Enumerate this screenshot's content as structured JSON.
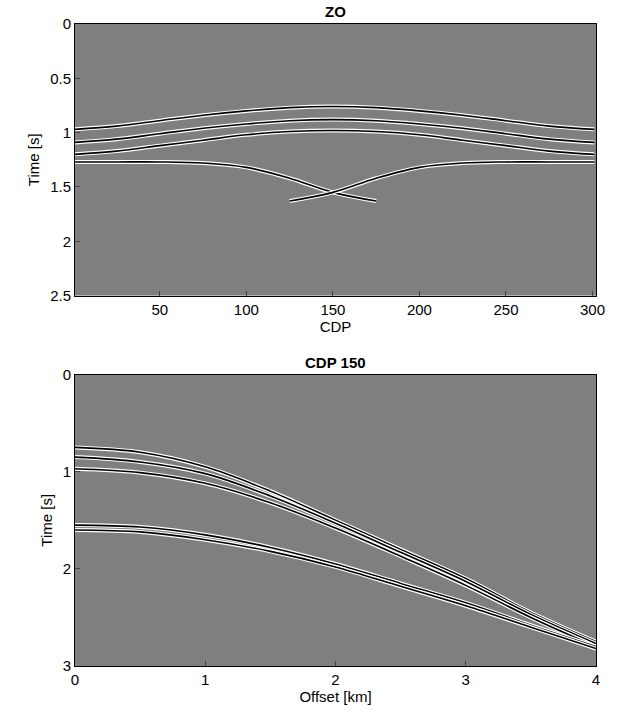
{
  "chart_data": [
    {
      "type": "line",
      "title": "ZO",
      "x_label": "CDP",
      "y_label": "Time [s]",
      "xlim": [
        1,
        302
      ],
      "ylim": [
        2.5,
        0
      ],
      "xticks": [
        50,
        100,
        150,
        200,
        250,
        300
      ],
      "yticks": [
        0,
        0.5,
        1,
        1.5,
        2,
        2.5
      ],
      "x": [
        1,
        25,
        50,
        75,
        100,
        125,
        150,
        175,
        200,
        225,
        250,
        275,
        301
      ],
      "series": [
        {
          "color": "#000000",
          "values": [
            0.97,
            0.94,
            0.89,
            0.84,
            0.8,
            0.77,
            0.76,
            0.77,
            0.8,
            0.84,
            0.89,
            0.94,
            0.97
          ]
        },
        {
          "color": "#000000",
          "values": [
            1.09,
            1.06,
            1.01,
            0.96,
            0.92,
            0.89,
            0.88,
            0.89,
            0.92,
            0.96,
            1.01,
            1.06,
            1.09
          ]
        },
        {
          "color": "#000000",
          "values": [
            1.2,
            1.17,
            1.12,
            1.07,
            1.02,
            0.99,
            0.98,
            0.99,
            1.02,
            1.07,
            1.12,
            1.17,
            1.2
          ]
        },
        {
          "color": "#000000",
          "values": [
            1.27,
            1.27,
            1.27,
            1.28,
            1.32,
            1.42,
            1.55,
            1.63,
            null,
            null,
            null,
            null,
            null
          ]
        },
        {
          "color": "#000000",
          "values": [
            null,
            null,
            null,
            null,
            null,
            1.63,
            1.55,
            1.42,
            1.32,
            1.28,
            1.27,
            1.27,
            1.27
          ]
        }
      ]
    },
    {
      "type": "line",
      "title": "CDP 150",
      "x_label": "Offset [km]",
      "y_label": "Time [s]",
      "xlim": [
        0,
        4
      ],
      "ylim": [
        3,
        0
      ],
      "xticks": [
        0,
        1,
        2,
        3,
        4
      ],
      "yticks": [
        0,
        1,
        2,
        3
      ],
      "x": [
        0,
        0.5,
        1,
        1.5,
        2,
        2.5,
        3,
        3.5,
        4
      ],
      "series": [
        {
          "color": "#000000",
          "values": [
            0.75,
            0.8,
            0.95,
            1.2,
            1.5,
            1.8,
            2.1,
            2.45,
            2.75
          ]
        },
        {
          "color": "#000000",
          "values": [
            0.85,
            0.9,
            1.02,
            1.25,
            1.53,
            1.83,
            2.13,
            2.47,
            2.77
          ]
        },
        {
          "color": "#000000",
          "values": [
            0.97,
            1.01,
            1.12,
            1.32,
            1.58,
            1.87,
            2.17,
            2.5,
            2.8
          ]
        },
        {
          "color": "#000000",
          "values": [
            1.55,
            1.57,
            1.65,
            1.78,
            1.95,
            2.15,
            2.35,
            2.58,
            2.8
          ]
        },
        {
          "color": "#000000",
          "values": [
            1.6,
            1.62,
            1.7,
            1.82,
            1.98,
            2.18,
            2.38,
            2.6,
            2.82
          ]
        }
      ]
    }
  ]
}
